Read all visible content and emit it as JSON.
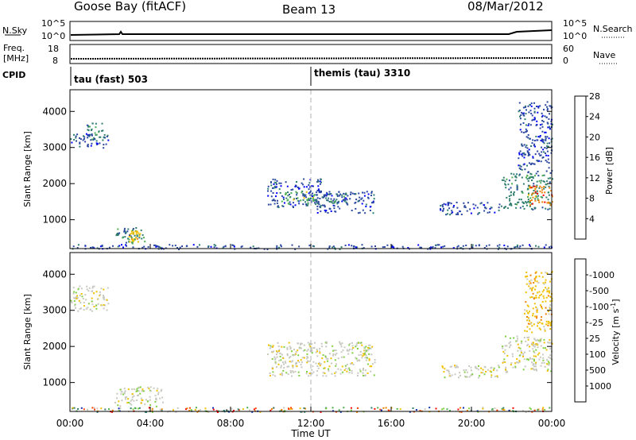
{
  "header": {
    "station": "Goose Bay (fitACF)",
    "beam": "Beam 13",
    "date": "08/Mar/2012"
  },
  "top_panels": {
    "nsky": {
      "label": "N.Sky",
      "tick_top": "10^5",
      "tick_bottom": "10^0"
    },
    "nsearch": {
      "label": "N.Search",
      "tick_top": "10^5",
      "tick_bottom": "10^0"
    },
    "freq": {
      "label_line1": "Freq.",
      "label_line2": "[MHz]",
      "tick_top": "18",
      "tick_bottom": "8"
    },
    "nave": {
      "label": "Nave",
      "tick_top": "60",
      "tick_bottom": "0"
    },
    "cpid": {
      "label": "CPID",
      "mode1": "tau (fast) 503",
      "mode2": "themis (tau) 3310"
    }
  },
  "chart_data": [
    {
      "type": "heatmap",
      "name": "Power",
      "ylabel": "Slant Range [km]",
      "yticks": [
        1000,
        2000,
        3000,
        4000
      ],
      "ylim": [
        200,
        4600
      ],
      "xlabel": "Time UT",
      "xticks": [
        "00:00",
        "04:00",
        "08:00",
        "12:00",
        "16:00",
        "20:00",
        "00:00"
      ],
      "xlim_hours": [
        0,
        24
      ],
      "colorbar": {
        "label": "Power [dB]",
        "ticks": [
          "4",
          "8",
          "12",
          "16",
          "20",
          "24",
          "28"
        ],
        "colors": [
          "#0000ff",
          "#2a48a0",
          "#2e7d6e",
          "#4caf50",
          "#f0c000",
          "#f08000",
          "#ff0000"
        ]
      },
      "regions": [
        {
          "t": [
            0.0,
            1.9
          ],
          "r": [
            3000,
            3400
          ],
          "level": 1
        },
        {
          "t": [
            0.8,
            1.7
          ],
          "r": [
            3200,
            3700
          ],
          "level": 2
        },
        {
          "t": [
            2.2,
            3.7
          ],
          "r": [
            350,
            800
          ],
          "level": 2
        },
        {
          "t": [
            2.9,
            3.5
          ],
          "r": [
            400,
            700
          ],
          "level": 4
        },
        {
          "t": [
            9.8,
            12.5
          ],
          "r": [
            1350,
            2150
          ],
          "level": 1
        },
        {
          "t": [
            10.5,
            12.2
          ],
          "r": [
            1450,
            1800
          ],
          "level": 3
        },
        {
          "t": [
            12.2,
            15.2
          ],
          "r": [
            1200,
            1800
          ],
          "level": 1
        },
        {
          "t": [
            12.5,
            13.8
          ],
          "r": [
            1450,
            1750
          ],
          "level": 2
        },
        {
          "t": [
            18.4,
            21.5
          ],
          "r": [
            1150,
            1500
          ],
          "level": 1
        },
        {
          "t": [
            21.5,
            24.0
          ],
          "r": [
            1300,
            2300
          ],
          "level": 2
        },
        {
          "t": [
            22.8,
            24.0
          ],
          "r": [
            1400,
            1950
          ],
          "level": 5
        },
        {
          "t": [
            22.3,
            24.0
          ],
          "r": [
            2300,
            4300
          ],
          "level": 1
        },
        {
          "t": [
            0.0,
            24.0
          ],
          "r": [
            200,
            330
          ],
          "level": 1
        }
      ]
    },
    {
      "type": "heatmap",
      "name": "Velocity",
      "ylabel": "Slant Range [km]",
      "yticks": [
        1000,
        2000,
        3000,
        4000
      ],
      "ylim": [
        200,
        4600
      ],
      "xlabel": "Time UT",
      "xticks": [
        "00:00",
        "04:00",
        "08:00",
        "12:00",
        "16:00",
        "20:00",
        "00:00"
      ],
      "xlim_hours": [
        0,
        24
      ],
      "colorbar": {
        "label": "Velocity [m s^-1]",
        "ticks": [
          "1000",
          "500",
          "100",
          "25",
          "-25",
          "-100",
          "-500",
          "-1000"
        ],
        "colors": [
          "#1030b0",
          "#2e7d6e",
          "#4caf50",
          "#80d040",
          "#c8c8c0",
          "#f0c000",
          "#f08000",
          "#ff4000",
          "#ff0000"
        ]
      },
      "regions": [
        {
          "t": [
            0.0,
            1.9
          ],
          "r": [
            3000,
            3700
          ],
          "level": 4
        },
        {
          "t": [
            2.2,
            4.6
          ],
          "r": [
            350,
            900
          ],
          "level": 4
        },
        {
          "t": [
            9.8,
            15.2
          ],
          "r": [
            1200,
            2150
          ],
          "level": 4
        },
        {
          "t": [
            18.4,
            21.5
          ],
          "r": [
            1150,
            1500
          ],
          "level": 4
        },
        {
          "t": [
            21.5,
            24.0
          ],
          "r": [
            1300,
            2300
          ],
          "level": 4
        },
        {
          "t": [
            22.6,
            24.0
          ],
          "r": [
            2400,
            4100
          ],
          "level": 5
        },
        {
          "t": [
            0.0,
            24.0
          ],
          "r": [
            200,
            330
          ],
          "level": 4
        }
      ]
    }
  ]
}
